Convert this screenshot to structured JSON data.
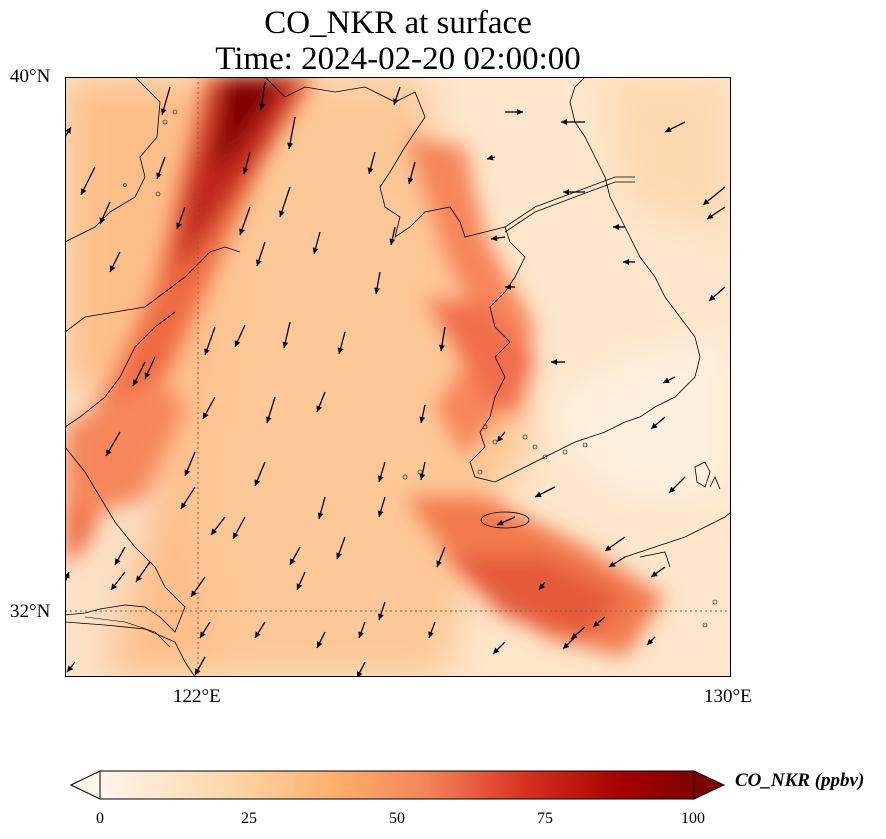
{
  "title_line1": "CO_NKR at surface",
  "title_line2": "Time: 2024-02-20 02:00:00",
  "lat_labels": [
    "40°N",
    "32°N"
  ],
  "lon_labels": [
    "122°E",
    "130°E"
  ],
  "colorbar": {
    "label": "CO_NKR (ppbv)",
    "ticks": [
      "0",
      "25",
      "50",
      "75",
      "100"
    ],
    "colormap": [
      "#fff5eb",
      "#fdd7a8",
      "#fdae6b",
      "#f16913",
      "#d94801",
      "#a50f15",
      "#7f0000"
    ],
    "extend": "both"
  },
  "map": {
    "lon_range": [
      120,
      130
    ],
    "lat_range": [
      31,
      40
    ],
    "gridlines": {
      "lon": [
        122
      ],
      "lat": [
        32
      ]
    },
    "coastline_color": "#000000",
    "wind_arrow_color": "#000000",
    "high_concentration_band_color": "#b30000"
  }
}
